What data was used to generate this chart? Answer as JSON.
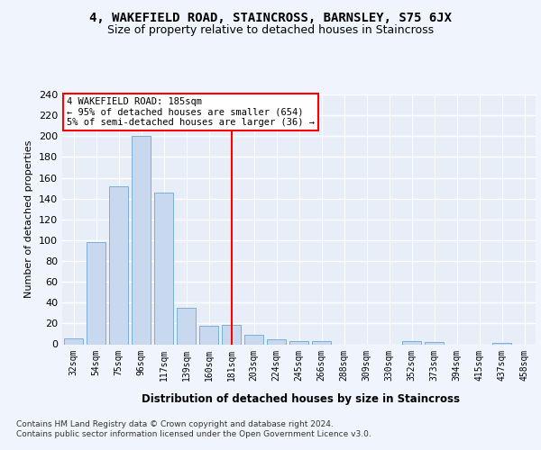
{
  "title": "4, WAKEFIELD ROAD, STAINCROSS, BARNSLEY, S75 6JX",
  "subtitle": "Size of property relative to detached houses in Staincross",
  "xlabel": "Distribution of detached houses by size in Staincross",
  "ylabel": "Number of detached properties",
  "bar_color": "#c8d9ef",
  "bar_edge_color": "#7aafd4",
  "background_color": "#e8eef8",
  "fig_background_color": "#f0f4fc",
  "grid_color": "#ffffff",
  "categories": [
    "32sqm",
    "54sqm",
    "75sqm",
    "96sqm",
    "117sqm",
    "139sqm",
    "160sqm",
    "181sqm",
    "203sqm",
    "224sqm",
    "245sqm",
    "266sqm",
    "288sqm",
    "309sqm",
    "330sqm",
    "352sqm",
    "373sqm",
    "394sqm",
    "415sqm",
    "437sqm",
    "458sqm"
  ],
  "values": [
    6,
    98,
    152,
    200,
    146,
    35,
    18,
    19,
    9,
    5,
    3,
    3,
    0,
    0,
    0,
    3,
    2,
    0,
    0,
    1,
    0
  ],
  "vline_x": 7.5,
  "annotation_title": "4 WAKEFIELD ROAD: 185sqm",
  "annotation_line1": "← 95% of detached houses are smaller (654)",
  "annotation_line2": "5% of semi-detached houses are larger (36) →",
  "footnote1": "Contains HM Land Registry data © Crown copyright and database right 2024.",
  "footnote2": "Contains public sector information licensed under the Open Government Licence v3.0.",
  "ylim_max": 240,
  "yticks": [
    0,
    20,
    40,
    60,
    80,
    100,
    120,
    140,
    160,
    180,
    200,
    220,
    240
  ]
}
